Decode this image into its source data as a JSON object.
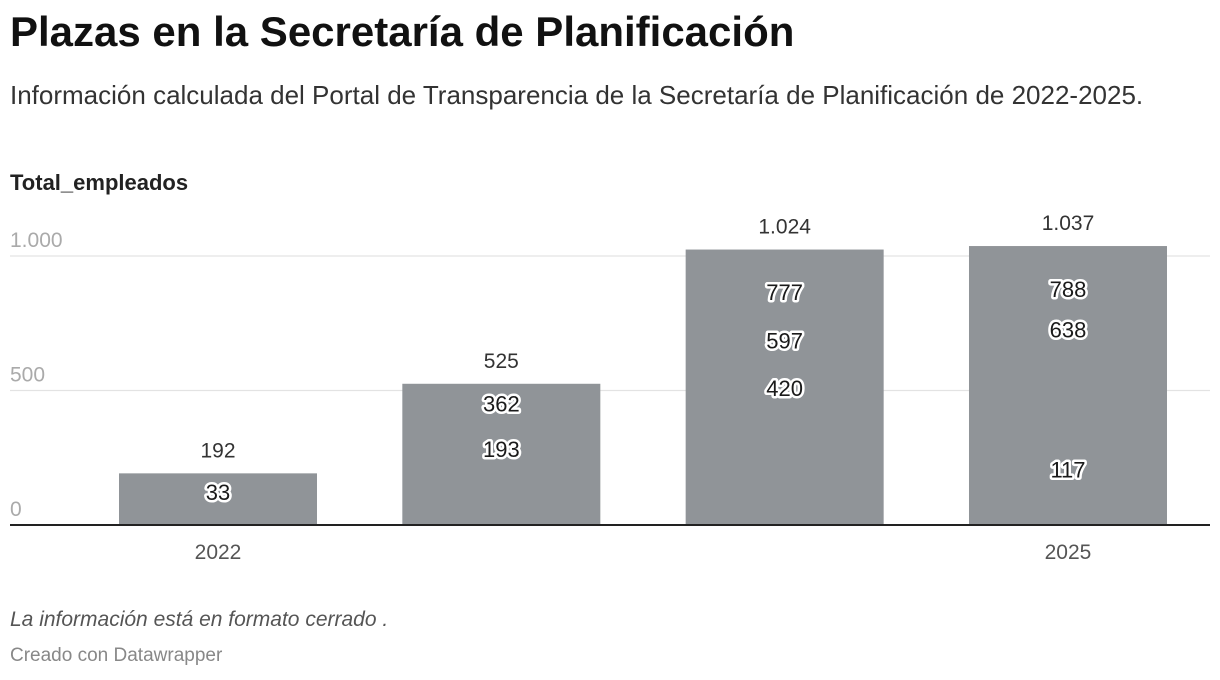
{
  "chart_data": {
    "type": "bar",
    "title": "Plazas en la Secretaría de Planificación",
    "subtitle": "Información calculada del Portal de Transparencia de la Secretaría de Planificación de 2022-2025.",
    "ylabel": "Total_empleados",
    "categories": [
      "2022",
      "",
      "",
      "2025"
    ],
    "values": [
      192,
      525,
      1024,
      1037
    ],
    "value_labels": [
      "192",
      "525",
      "1.024",
      "1.037"
    ],
    "inner_labels": [
      [
        33
      ],
      [
        362,
        193
      ],
      [
        777,
        597,
        420
      ],
      [
        788,
        638,
        117
      ]
    ],
    "yticks": [
      0,
      500,
      1000
    ],
    "ytick_labels": [
      "0",
      "500",
      "1.000"
    ],
    "ylim": [
      0,
      1000
    ],
    "grid": true
  },
  "footer": {
    "note": "La información está en formato cerrado .",
    "credit": "Creado con Datawrapper"
  },
  "colors": {
    "bar": "#909498",
    "gridline": "#e3e3e3",
    "baseline": "#222222",
    "y_tick_text": "#aaaaaa",
    "x_tick_text": "#555555",
    "value_label": "#333333",
    "inner_label": "#1a1a1a"
  }
}
